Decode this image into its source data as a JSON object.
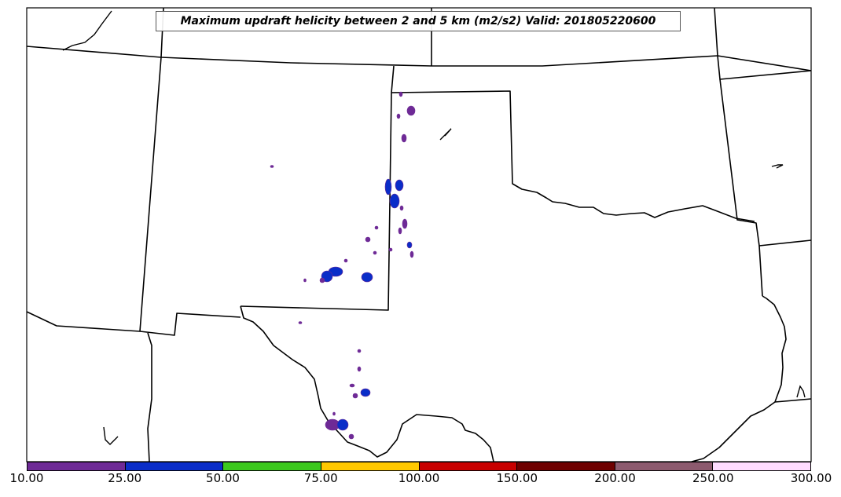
{
  "title": "Maximum updraft helicity between 2 and 5 km (m2/s2) Valid: 201805220600",
  "colorbar": {
    "colors": [
      "#6e2a96",
      "#0a2dc8",
      "#3cc81e",
      "#ffc800",
      "#c80000",
      "#6e0000",
      "#8c5a6e",
      "#ffdcff"
    ],
    "ticks": [
      "10.00",
      "25.00",
      "50.00",
      "75.00",
      "100.00",
      "150.00",
      "200.00",
      "250.00",
      "300.00"
    ]
  }
}
